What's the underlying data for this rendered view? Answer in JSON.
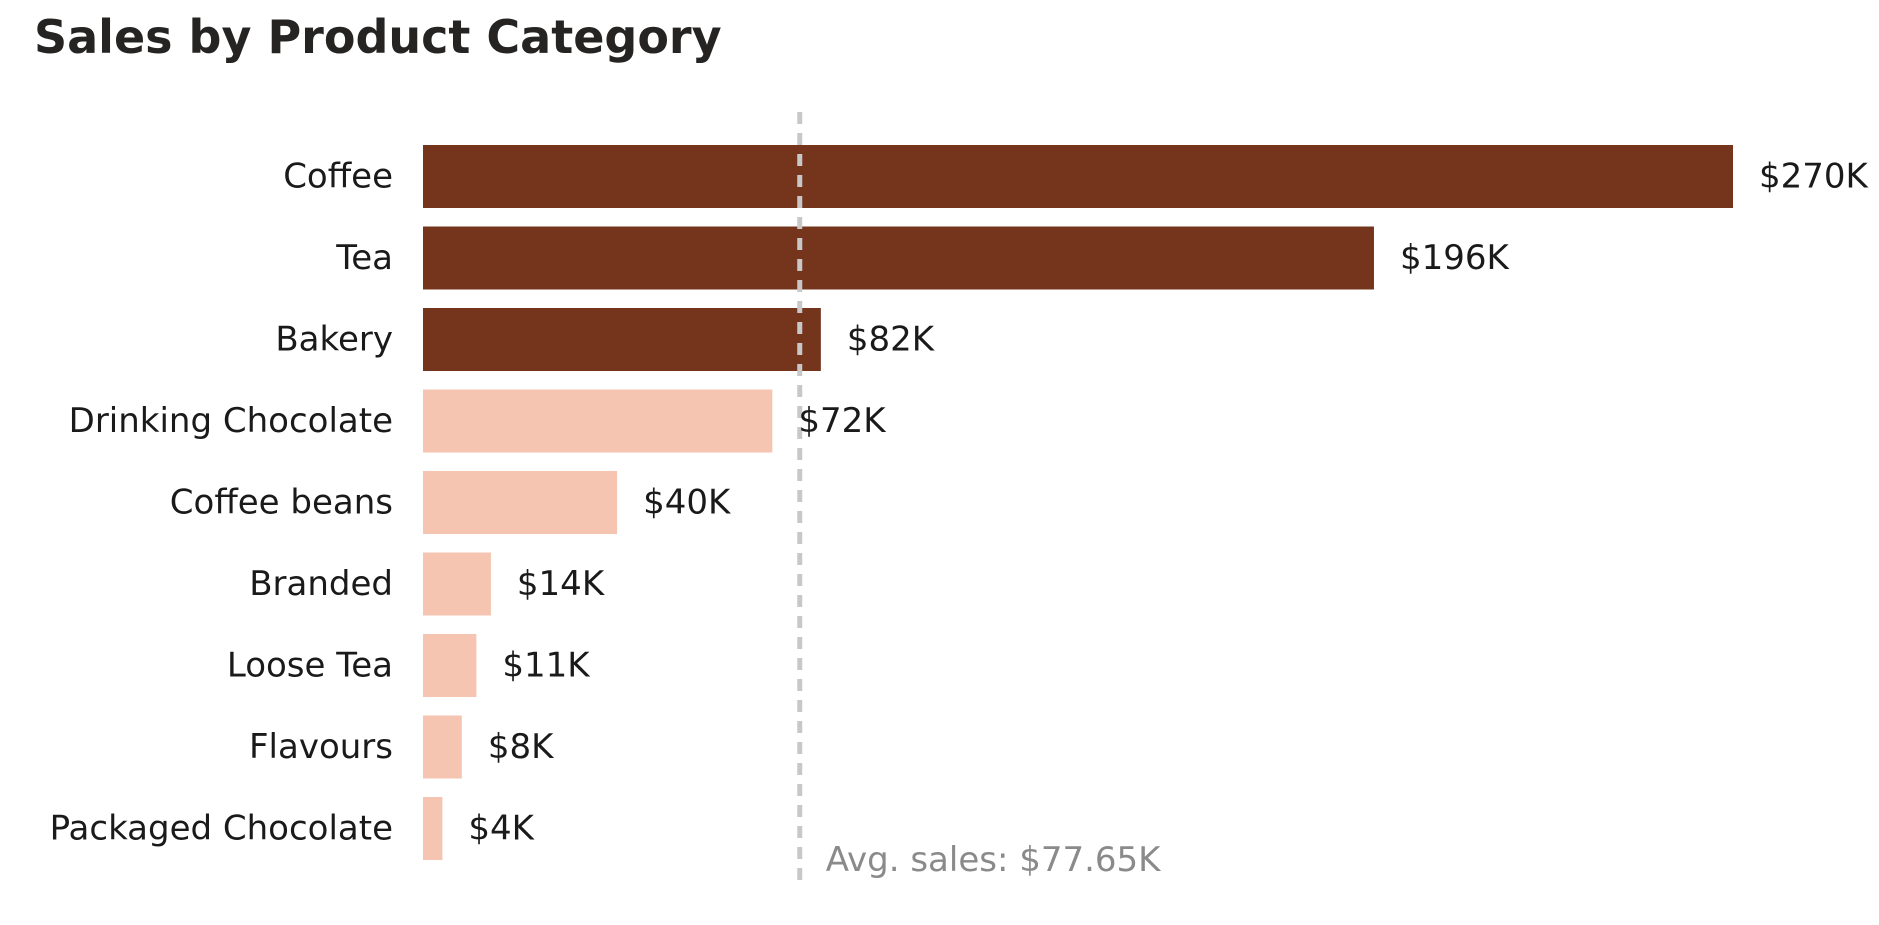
{
  "chart_data": {
    "type": "bar",
    "orientation": "horizontal",
    "title": "Sales by Product Category",
    "categories": [
      "Coffee",
      "Tea",
      "Bakery",
      "Drinking Chocolate",
      "Coffee beans",
      "Branded",
      "Loose Tea",
      "Flavours",
      "Packaged Chocolate"
    ],
    "values": [
      270,
      196,
      82,
      72,
      40,
      14,
      11,
      8,
      4
    ],
    "value_labels": [
      "$270K",
      "$196K",
      "$82K",
      "$72K",
      "$40K",
      "$14K",
      "$11K",
      "$8K",
      "$4K"
    ],
    "value_unit": "$K",
    "xlim": [
      0,
      270
    ],
    "xlabel": "",
    "ylabel": "",
    "average": {
      "value": 77.65,
      "label": "Avg. sales: $77.65K"
    },
    "colors": {
      "above_average": "#74351c",
      "below_average": "#f5c5b1",
      "average_line": "#c8c8c8",
      "average_text": "#8a8a8a"
    },
    "grid": false,
    "legend": "none"
  }
}
